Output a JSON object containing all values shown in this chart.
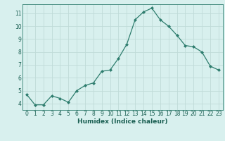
{
  "x": [
    0,
    1,
    2,
    3,
    4,
    5,
    6,
    7,
    8,
    9,
    10,
    11,
    12,
    13,
    14,
    15,
    16,
    17,
    18,
    19,
    20,
    21,
    22,
    23
  ],
  "y": [
    4.7,
    3.9,
    3.9,
    4.6,
    4.4,
    4.1,
    5.0,
    5.4,
    5.6,
    6.5,
    6.6,
    7.5,
    8.6,
    10.5,
    11.1,
    11.4,
    10.5,
    10.0,
    9.3,
    8.5,
    8.4,
    8.0,
    6.9,
    6.6
  ],
  "xlabel": "Humidex (Indice chaleur)",
  "xlim": [
    -0.5,
    23.5
  ],
  "ylim": [
    3.5,
    11.7
  ],
  "yticks": [
    4,
    5,
    6,
    7,
    8,
    9,
    10,
    11
  ],
  "xticks": [
    0,
    1,
    2,
    3,
    4,
    5,
    6,
    7,
    8,
    9,
    10,
    11,
    12,
    13,
    14,
    15,
    16,
    17,
    18,
    19,
    20,
    21,
    22,
    23
  ],
  "line_color": "#2e7d6e",
  "marker": "D",
  "marker_size": 2.0,
  "bg_color": "#d8f0ee",
  "grid_color": "#c0dbd8",
  "tick_color": "#1a5f52",
  "label_color": "#1a5f52",
  "spine_color": "#2e7d6e",
  "tick_fontsize": 5.5,
  "xlabel_fontsize": 6.5
}
